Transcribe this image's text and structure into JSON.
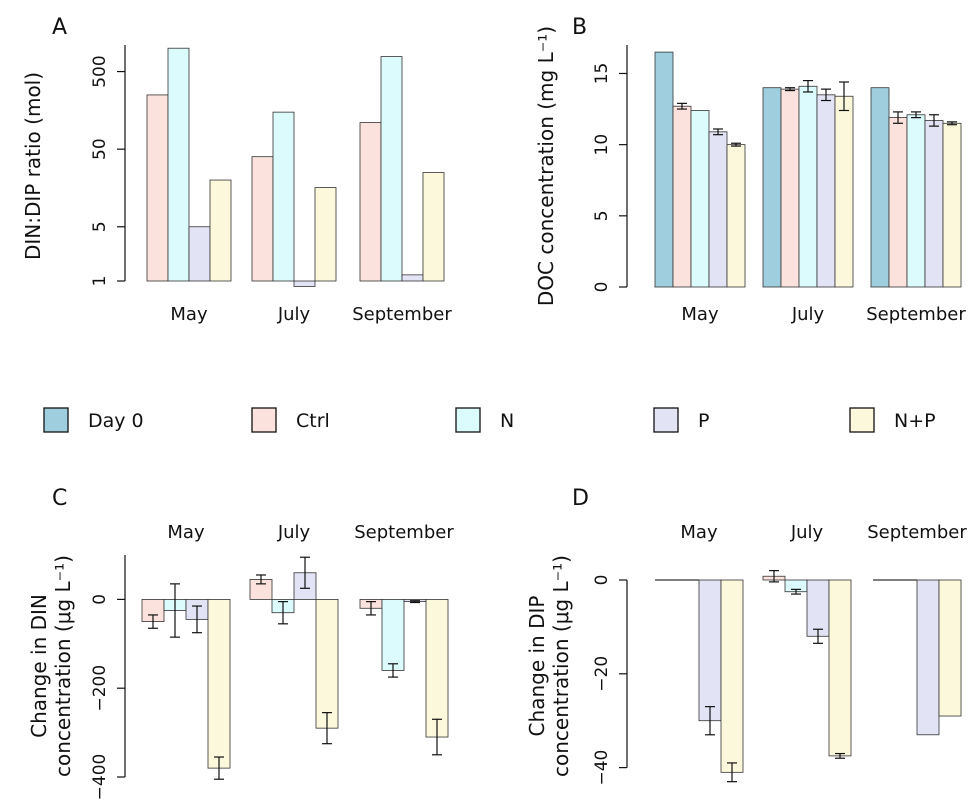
{
  "legend": [
    {
      "key": "day0",
      "label": "Day 0",
      "color": "#9fcfdf"
    },
    {
      "key": "ctrl",
      "label": "Ctrl",
      "color": "#fce2dc"
    },
    {
      "key": "n",
      "label": "N",
      "color": "#dcfbfc"
    },
    {
      "key": "p",
      "label": "P",
      "color": "#e3e3f6"
    },
    {
      "key": "np",
      "label": "N+P",
      "color": "#fcf8dc"
    }
  ],
  "chart_data": [
    {
      "panel": "A",
      "type": "bar",
      "scale": "log",
      "ylabel": "DIN:DIP ratio (mol)",
      "yticks": [
        1,
        5,
        50,
        500
      ],
      "ylim": [
        1,
        1100
      ],
      "categories": [
        "May",
        "July",
        "September"
      ],
      "series": [
        {
          "key": "ctrl",
          "values": [
            250,
            40,
            110
          ]
        },
        {
          "key": "n",
          "values": [
            1000,
            150,
            780
          ]
        },
        {
          "key": "p",
          "values": [
            5,
            0.85,
            1.2
          ]
        },
        {
          "key": "np",
          "values": [
            20,
            16,
            25
          ]
        }
      ]
    },
    {
      "panel": "B",
      "type": "bar",
      "scale": "linear",
      "ylabel": "DOC concentration (mg L⁻¹)",
      "yticks": [
        0,
        5,
        10,
        15
      ],
      "ylim": [
        0,
        17
      ],
      "categories": [
        "May",
        "July",
        "September"
      ],
      "series": [
        {
          "key": "day0",
          "values": [
            16.5,
            14.0,
            14.0
          ],
          "errors": [
            0,
            0,
            0
          ]
        },
        {
          "key": "ctrl",
          "values": [
            12.7,
            13.9,
            11.9
          ],
          "errors": [
            0.2,
            0.1,
            0.4
          ]
        },
        {
          "key": "n",
          "values": [
            12.4,
            14.1,
            12.1
          ],
          "errors": [
            0,
            0.4,
            0.2
          ]
        },
        {
          "key": "p",
          "values": [
            10.9,
            13.5,
            11.7
          ],
          "errors": [
            0.2,
            0.4,
            0.4
          ]
        },
        {
          "key": "np",
          "values": [
            10.0,
            13.4,
            11.5
          ],
          "errors": [
            0.1,
            1.0,
            0.1
          ]
        }
      ]
    },
    {
      "panel": "C",
      "type": "bar",
      "scale": "linear",
      "ylabel_line1": "Change in DIN",
      "ylabel_line2": "concentration (μg L⁻¹)",
      "yticks": [
        0,
        -200,
        -400
      ],
      "ylim": [
        -400,
        100
      ],
      "categories": [
        "May",
        "July",
        "September"
      ],
      "series": [
        {
          "key": "ctrl",
          "values": [
            -50,
            45,
            -20
          ],
          "errors": [
            15,
            10,
            15
          ]
        },
        {
          "key": "n",
          "values": [
            -25,
            -30,
            -160
          ],
          "errors": [
            60,
            25,
            15
          ]
        },
        {
          "key": "p",
          "values": [
            -45,
            60,
            -5
          ],
          "errors": [
            30,
            35,
            2
          ]
        },
        {
          "key": "np",
          "values": [
            -380,
            -290,
            -310
          ],
          "errors": [
            25,
            35,
            40
          ]
        }
      ]
    },
    {
      "panel": "D",
      "type": "bar",
      "scale": "linear",
      "ylabel_line1": "Change in DIP",
      "ylabel_line2": "concentration (μg L⁻¹)",
      "yticks": [
        0,
        -20,
        -40
      ],
      "ylim": [
        -42,
        0
      ],
      "categories": [
        "May",
        "July",
        "September"
      ],
      "series": [
        {
          "key": "ctrl",
          "values": [
            0,
            0.8,
            0
          ],
          "errors": [
            0,
            1.2,
            0
          ]
        },
        {
          "key": "n",
          "values": [
            0,
            -2.5,
            0
          ],
          "errors": [
            0,
            0.5,
            0
          ]
        },
        {
          "key": "p",
          "values": [
            -30,
            -12,
            -33
          ],
          "errors": [
            3,
            1.5,
            0
          ]
        },
        {
          "key": "np",
          "values": [
            -41,
            -37.5,
            -29
          ],
          "errors": [
            2,
            0.5,
            0
          ]
        }
      ]
    }
  ]
}
